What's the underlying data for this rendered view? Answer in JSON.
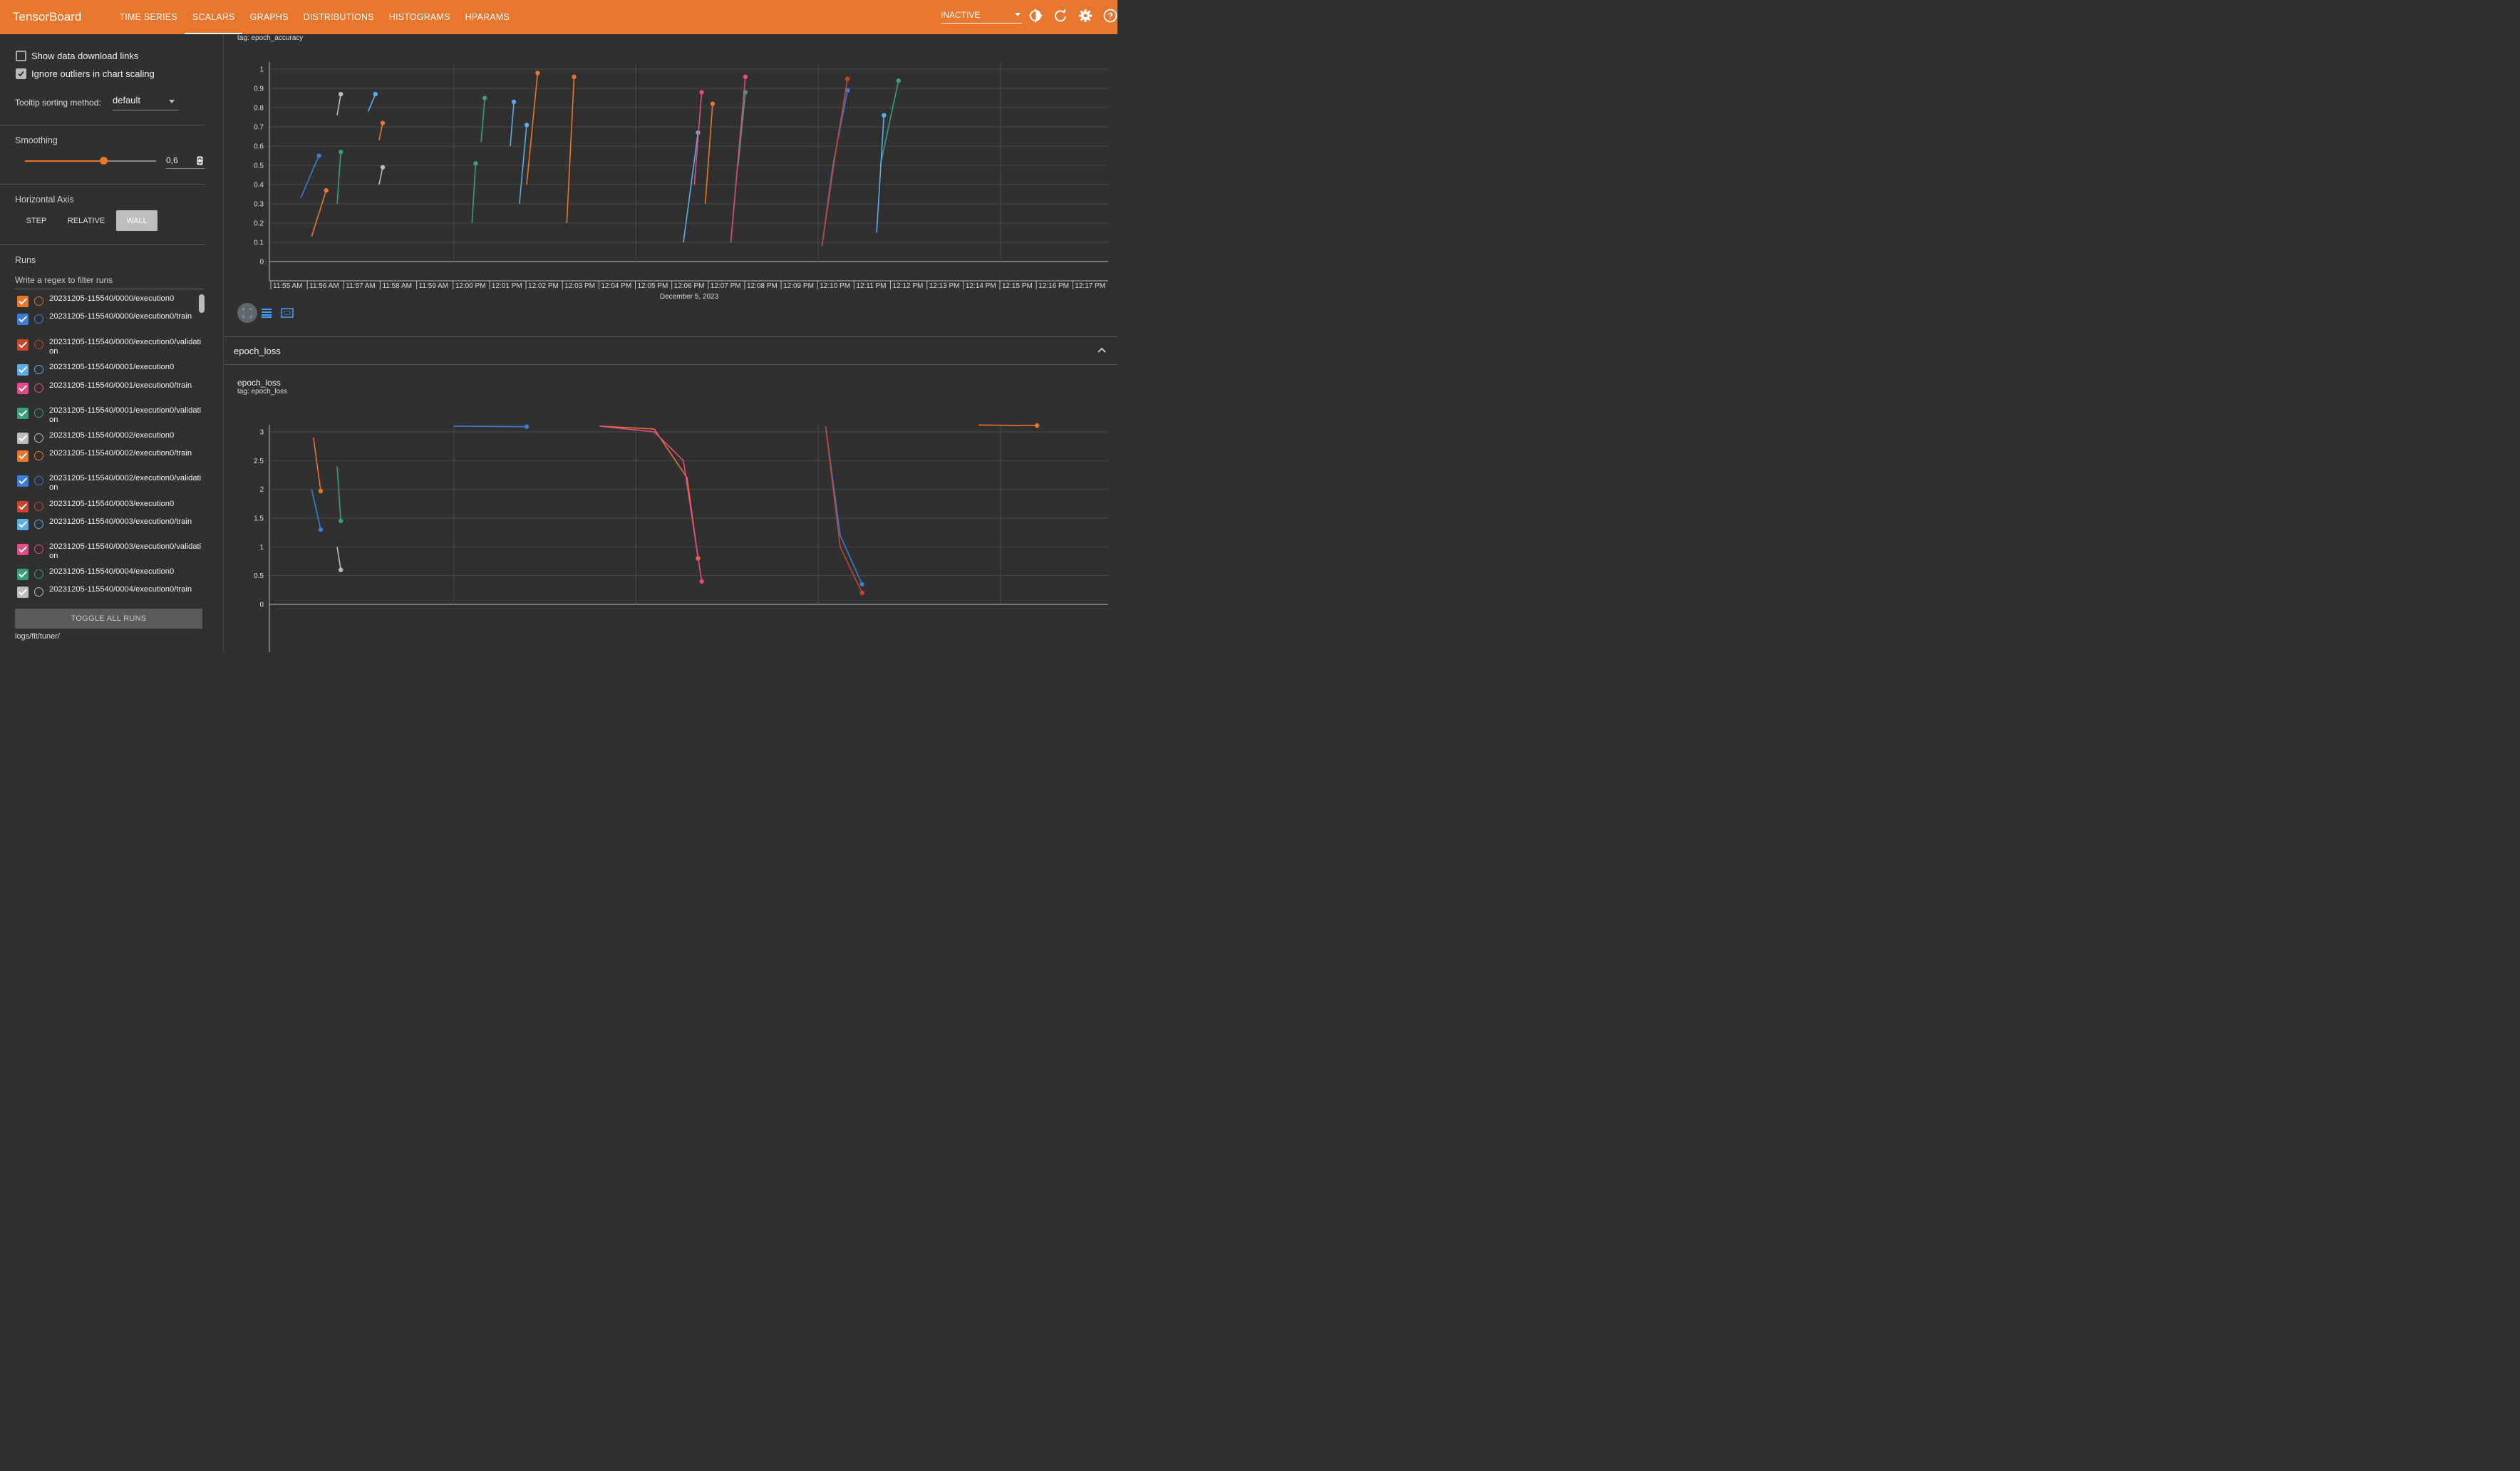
{
  "header": {
    "brand": "TensorBoard",
    "tabs": [
      "TIME SERIES",
      "SCALARS",
      "GRAPHS",
      "DISTRIBUTIONS",
      "HISTOGRAMS",
      "HPARAMS"
    ],
    "active_tab": "SCALARS",
    "status_select": "INACTIVE",
    "icons": [
      "theme-toggle-icon",
      "refresh-icon",
      "settings-icon",
      "help-icon"
    ]
  },
  "sidebar": {
    "show_download_links": "Show data download links",
    "ignore_outliers": "Ignore outliers in chart scaling",
    "tooltip_label": "Tooltip sorting method:",
    "tooltip_value": "default",
    "smoothing_label": "Smoothing",
    "smoothing_value": "0,6",
    "smoothing_fraction": 0.6,
    "axis_label": "Horizontal Axis",
    "axis_options": [
      "STEP",
      "RELATIVE",
      "WALL"
    ],
    "axis_selected": "WALL",
    "runs_label": "Runs",
    "runs_filter_placeholder": "Write a regex to filter runs",
    "runs": [
      {
        "name": "20231205-115540/0000/execution0",
        "color": "#e8762d",
        "checked": true
      },
      {
        "name": "20231205-115540/0000/execution0/train",
        "color": "#3b7bd9",
        "checked": true
      },
      {
        "name": "20231205-115540/0000/execution0/validation",
        "color": "#c9432f",
        "checked": true
      },
      {
        "name": "20231205-115540/0001/execution0",
        "color": "#5aaee8",
        "checked": true
      },
      {
        "name": "20231205-115540/0001/execution0/train",
        "color": "#e34b87",
        "checked": true
      },
      {
        "name": "20231205-115540/0001/execution0/validation",
        "color": "#3b9b7f",
        "checked": true
      },
      {
        "name": "20231205-115540/0002/execution0",
        "color": "#bdbdbd",
        "checked": true
      },
      {
        "name": "20231205-115540/0002/execution0/train",
        "color": "#e8762d",
        "checked": true
      },
      {
        "name": "20231205-115540/0002/execution0/validation",
        "color": "#3b7bd9",
        "checked": true
      },
      {
        "name": "20231205-115540/0003/execution0",
        "color": "#c9432f",
        "checked": true
      },
      {
        "name": "20231205-115540/0003/execution0/train",
        "color": "#5aaee8",
        "checked": true
      },
      {
        "name": "20231205-115540/0003/execution0/validation",
        "color": "#e34b87",
        "checked": true
      },
      {
        "name": "20231205-115540/0004/execution0",
        "color": "#3b9b7f",
        "checked": true
      },
      {
        "name": "20231205-115540/0004/execution0/train",
        "color": "#bdbdbd",
        "checked": true
      }
    ],
    "toggle_all": "TOGGLE ALL RUNS",
    "logdir": "logs/fit/tuner/"
  },
  "main": {
    "accuracy_tag": "tag: epoch_accuracy",
    "group_title": "epoch_loss",
    "loss_title": "epoch_loss",
    "loss_tag": "tag: epoch_loss",
    "date_label": "December 5, 2023"
  },
  "chart_data": [
    {
      "type": "line",
      "title": "epoch_accuracy",
      "ylim": [
        0,
        1
      ],
      "yticks": [
        "0",
        "0.1",
        "0.2",
        "0.3",
        "0.4",
        "0.5",
        "0.6",
        "0.7",
        "0.8",
        "0.9",
        "1"
      ],
      "xlabel": "December 5, 2023",
      "x_ticks": [
        "11:55 AM",
        "11:56 AM",
        "11:57 AM",
        "11:58 AM",
        "11:59 AM",
        "12:00 PM",
        "12:01 PM",
        "12:02 PM",
        "12:03 PM",
        "12:04 PM",
        "12:05 PM",
        "12:06 PM",
        "12:07 PM",
        "12:08 PM",
        "12:09 PM",
        "12:10 PM",
        "12:11 PM",
        "12:12 PM",
        "12:13 PM",
        "12:14 PM",
        "12:15 PM",
        "12:16 PM",
        "12:17 PM"
      ],
      "x_unit": "minutes after 11:55 AM",
      "series": [
        {
          "color": "#3b7bd9",
          "points": [
            [
              0.8,
              0.33
            ],
            [
              1.3,
              0.55
            ]
          ]
        },
        {
          "color": "#e8762d",
          "points": [
            [
              1.1,
              0.13
            ],
            [
              1.5,
              0.37
            ]
          ]
        },
        {
          "color": "#3b9b7f",
          "points": [
            [
              1.8,
              0.3
            ],
            [
              1.9,
              0.57
            ]
          ]
        },
        {
          "color": "#bdbdbd",
          "points": [
            [
              1.8,
              0.76
            ],
            [
              1.9,
              0.87
            ]
          ]
        },
        {
          "color": "#5aaee8",
          "points": [
            [
              2.65,
              0.78
            ],
            [
              2.85,
              0.87
            ]
          ]
        },
        {
          "color": "#e8762d",
          "points": [
            [
              2.95,
              0.63
            ],
            [
              3.05,
              0.72
            ]
          ]
        },
        {
          "color": "#bdbdbd",
          "points": [
            [
              2.95,
              0.4
            ],
            [
              3.05,
              0.49
            ]
          ]
        },
        {
          "color": "#3b9b7f",
          "points": [
            [
              5.5,
              0.2
            ],
            [
              5.6,
              0.51
            ]
          ]
        },
        {
          "color": "#3b9b7f",
          "points": [
            [
              5.75,
              0.62
            ],
            [
              5.85,
              0.85
            ]
          ]
        },
        {
          "color": "#5aaee8",
          "points": [
            [
              6.55,
              0.6
            ],
            [
              6.65,
              0.83
            ]
          ]
        },
        {
          "color": "#5aaee8",
          "points": [
            [
              6.8,
              0.3
            ],
            [
              7.0,
              0.71
            ]
          ]
        },
        {
          "color": "#e8762d",
          "points": [
            [
              7.0,
              0.4
            ],
            [
              7.3,
              0.98
            ]
          ]
        },
        {
          "color": "#e8762d",
          "points": [
            [
              8.1,
              0.2
            ],
            [
              8.3,
              0.96
            ]
          ]
        },
        {
          "color": "#5aaee8",
          "points": [
            [
              11.3,
              0.1
            ],
            [
              11.7,
              0.67
            ]
          ]
        },
        {
          "color": "#e34b87",
          "points": [
            [
              11.6,
              0.4
            ],
            [
              11.8,
              0.88
            ]
          ]
        },
        {
          "color": "#e8762d",
          "points": [
            [
              11.9,
              0.3
            ],
            [
              12.1,
              0.82
            ]
          ]
        },
        {
          "color": "#3b9b7f",
          "points": [
            [
              12.8,
              0.5
            ],
            [
              13.0,
              0.88
            ]
          ]
        },
        {
          "color": "#e34b87",
          "points": [
            [
              12.6,
              0.1
            ],
            [
              13.0,
              0.96
            ]
          ]
        },
        {
          "color": "#3b7bd9",
          "points": [
            [
              15.1,
              0.08
            ],
            [
              15.4,
              0.5
            ],
            [
              15.8,
              0.89
            ]
          ]
        },
        {
          "color": "#c9432f",
          "points": [
            [
              15.1,
              0.08
            ],
            [
              15.5,
              0.6
            ],
            [
              15.8,
              0.95
            ]
          ]
        },
        {
          "color": "#3b9b7f",
          "points": [
            [
              16.7,
              0.5
            ],
            [
              17.2,
              0.94
            ]
          ]
        },
        {
          "color": "#5aaee8",
          "points": [
            [
              16.6,
              0.15
            ],
            [
              16.8,
              0.76
            ]
          ]
        }
      ]
    },
    {
      "type": "line",
      "title": "epoch_loss",
      "ylim": [
        0,
        3
      ],
      "yticks": [
        "0",
        "0.5",
        "1",
        "1.5",
        "2",
        "2.5",
        "3"
      ],
      "xlabel": "December 5, 2023",
      "x_ticks": [
        "11:55 AM",
        "11:56 AM",
        "11:57 AM",
        "11:58 AM",
        "11:59 AM",
        "12:00 PM",
        "12:01 PM",
        "12:02 PM",
        "12:03 PM",
        "12:04 PM",
        "12:05 PM",
        "12:06 PM",
        "12:07 PM",
        "12:08 PM",
        "12:09 PM",
        "12:10 PM",
        "12:11 PM",
        "12:12 PM",
        "12:13 PM",
        "12:14 PM",
        "12:15 PM",
        "12:16 PM",
        "12:17 PM"
      ],
      "x_unit": "minutes after 11:55 AM",
      "series": [
        {
          "color": "#e8762d",
          "points": [
            [
              1.15,
              2.9
            ],
            [
              1.35,
              1.97
            ]
          ]
        },
        {
          "color": "#3b7bd9",
          "points": [
            [
              1.1,
              2.0
            ],
            [
              1.35,
              1.3
            ]
          ]
        },
        {
          "color": "#3b9b7f",
          "points": [
            [
              1.8,
              2.4
            ],
            [
              1.9,
              1.45
            ]
          ]
        },
        {
          "color": "#bdbdbd",
          "points": [
            [
              1.8,
              1.0
            ],
            [
              1.9,
              0.6
            ]
          ]
        },
        {
          "color": "#3b7bd9",
          "points": [
            [
              5.0,
              3.1
            ],
            [
              7.0,
              3.09
            ]
          ]
        },
        {
          "color": "#e8762d",
          "points": [
            [
              9.0,
              3.1
            ],
            [
              10.5,
              3.05
            ],
            [
              11.4,
              2.2
            ],
            [
              11.7,
              0.8
            ]
          ]
        },
        {
          "color": "#e34b87",
          "points": [
            [
              9.0,
              3.1
            ],
            [
              10.5,
              3.0
            ],
            [
              11.3,
              2.5
            ],
            [
              11.8,
              0.4
            ]
          ]
        },
        {
          "color": "#3b7bd9",
          "points": [
            [
              15.2,
              3.1
            ],
            [
              15.6,
              1.2
            ],
            [
              16.2,
              0.35
            ]
          ]
        },
        {
          "color": "#c9432f",
          "points": [
            [
              15.2,
              3.1
            ],
            [
              15.6,
              1.0
            ],
            [
              16.2,
              0.2
            ]
          ]
        },
        {
          "color": "#e8762d",
          "points": [
            [
              19.4,
              3.12
            ],
            [
              21.0,
              3.11
            ]
          ]
        }
      ]
    }
  ]
}
